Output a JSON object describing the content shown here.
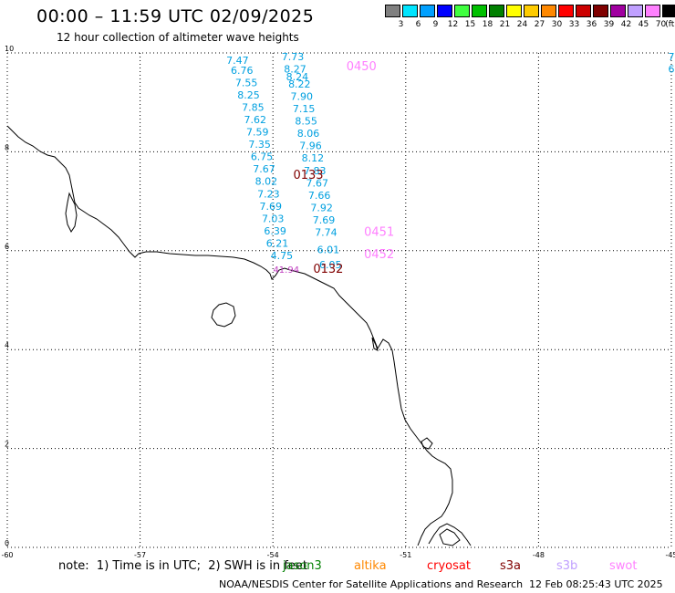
{
  "header": {
    "title": "00:00 – 11:59 UTC 02/09/2025",
    "subtitle": "12 hour collection of altimeter wave heights"
  },
  "legend": {
    "unit": "(ft)",
    "bins": [
      {
        "label": "3",
        "color": "#808080"
      },
      {
        "label": "6",
        "color": "#00e5ff"
      },
      {
        "label": "9",
        "color": "#00a0ff"
      },
      {
        "label": "12",
        "color": "#0000ff"
      },
      {
        "label": "15",
        "color": "#40ff40"
      },
      {
        "label": "18",
        "color": "#00c000"
      },
      {
        "label": "21",
        "color": "#008000"
      },
      {
        "label": "24",
        "color": "#ffff00"
      },
      {
        "label": "27",
        "color": "#ffcc00"
      },
      {
        "label": "30",
        "color": "#ff8800"
      },
      {
        "label": "33",
        "color": "#ff0000"
      },
      {
        "label": "36",
        "color": "#cc0000"
      },
      {
        "label": "39",
        "color": "#800000"
      },
      {
        "label": "42",
        "color": "#a000a0"
      },
      {
        "label": "45",
        "color": "#c0a0ff"
      },
      {
        "label": "70",
        "color": "#ff80ff"
      },
      {
        "label": "",
        "color": "#000000"
      }
    ]
  },
  "map": {
    "lon_range": [
      -60,
      -45
    ],
    "lat_range": [
      0,
      10
    ],
    "x_ticks": [
      "-60",
      "-57",
      "-54",
      "-51",
      "-48",
      "-45"
    ],
    "y_ticks": [
      "0",
      "2",
      "4",
      "6",
      "8",
      "10"
    ],
    "track_color": "#00a0e0",
    "track_values": [
      {
        "v": "7.47",
        "lon": -54.8,
        "lat": 9.78
      },
      {
        "v": "6.76",
        "lon": -54.7,
        "lat": 9.58
      },
      {
        "v": "7.55",
        "lon": -54.6,
        "lat": 9.33
      },
      {
        "v": "8.25",
        "lon": -54.55,
        "lat": 9.08
      },
      {
        "v": "7.85",
        "lon": -54.45,
        "lat": 8.83
      },
      {
        "v": "7.62",
        "lon": -54.4,
        "lat": 8.58
      },
      {
        "v": "7.59",
        "lon": -54.35,
        "lat": 8.33
      },
      {
        "v": "7.35",
        "lon": -54.3,
        "lat": 8.08
      },
      {
        "v": "6.75",
        "lon": -54.25,
        "lat": 7.83
      },
      {
        "v": "7.67",
        "lon": -54.2,
        "lat": 7.58
      },
      {
        "v": "8.02",
        "lon": -54.15,
        "lat": 7.33
      },
      {
        "v": "7.23",
        "lon": -54.1,
        "lat": 7.08
      },
      {
        "v": "7.69",
        "lon": -54.05,
        "lat": 6.83
      },
      {
        "v": "7.03",
        "lon": -54.0,
        "lat": 6.58
      },
      {
        "v": "6.39",
        "lon": -53.95,
        "lat": 6.33
      },
      {
        "v": "6.21",
        "lon": -53.9,
        "lat": 6.08
      },
      {
        "v": "4.75",
        "lon": -53.8,
        "lat": 5.83
      },
      {
        "v": "7.73",
        "lon": -53.55,
        "lat": 9.85
      },
      {
        "v": "8.27",
        "lon": -53.5,
        "lat": 9.6
      },
      {
        "v": "8.24",
        "lon": -53.45,
        "lat": 9.45
      },
      {
        "v": "8.22",
        "lon": -53.4,
        "lat": 9.3
      },
      {
        "v": "7.90",
        "lon": -53.35,
        "lat": 9.05
      },
      {
        "v": "7.15",
        "lon": -53.3,
        "lat": 8.8
      },
      {
        "v": "8.55",
        "lon": -53.25,
        "lat": 8.55
      },
      {
        "v": "8.06",
        "lon": -53.2,
        "lat": 8.3
      },
      {
        "v": "7.96",
        "lon": -53.15,
        "lat": 8.05
      },
      {
        "v": "8.12",
        "lon": -53.1,
        "lat": 7.8
      },
      {
        "v": "7.83",
        "lon": -53.05,
        "lat": 7.55
      },
      {
        "v": "7.67",
        "lon": -53.0,
        "lat": 7.3
      },
      {
        "v": "7.66",
        "lon": -52.95,
        "lat": 7.05
      },
      {
        "v": "7.92",
        "lon": -52.9,
        "lat": 6.8
      },
      {
        "v": "7.69",
        "lon": -52.85,
        "lat": 6.55
      },
      {
        "v": "7.74",
        "lon": -52.8,
        "lat": 6.3
      },
      {
        "v": "6.01",
        "lon": -52.75,
        "lat": 5.95
      },
      {
        "v": "6.05",
        "lon": -52.7,
        "lat": 5.65
      },
      {
        "v": "7",
        "lon": -45.0,
        "lat": 9.85
      },
      {
        "v": "6",
        "lon": -45.0,
        "lat": 9.6
      }
    ],
    "magenta_value": {
      "v": "41.94",
      "lon": -53.7,
      "lat": 5.55,
      "color": "#c040c0"
    },
    "pass_labels": [
      {
        "t": "0450",
        "lon": -52.0,
        "lat": 9.65,
        "color": "#ff80ff"
      },
      {
        "t": "0451",
        "lon": -51.6,
        "lat": 6.3,
        "color": "#ff80ff"
      },
      {
        "t": "0452",
        "lon": -51.6,
        "lat": 5.85,
        "color": "#ff80ff"
      },
      {
        "t": "0133",
        "lon": -53.2,
        "lat": 7.45,
        "color": "#800000"
      },
      {
        "t": "0132",
        "lon": -52.75,
        "lat": 5.55,
        "color": "#800000"
      }
    ]
  },
  "footer": {
    "note": "note:  1) Time is in UTC;  2) SWH is in feet",
    "satellites": [
      {
        "name": "jason3",
        "color": "#008000"
      },
      {
        "name": "altika",
        "color": "#ff8800"
      },
      {
        "name": "cryosat",
        "color": "#ff0000"
      },
      {
        "name": "s3a",
        "color": "#800000"
      },
      {
        "name": "s3b",
        "color": "#c0a0ff"
      },
      {
        "name": "swot",
        "color": "#ff80ff"
      }
    ],
    "credit": "NOAA/NESDIS Center for Satellite Applications and Research",
    "timestamp": "12 Feb 08:25:43 UTC 2025"
  }
}
